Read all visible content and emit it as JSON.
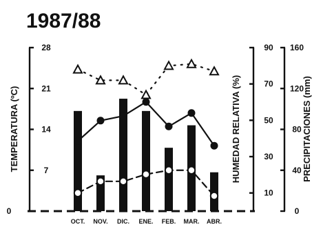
{
  "chart_data": {
    "type": "bar",
    "title": "1987/88",
    "categories": [
      "OCT.",
      "NOV.",
      "DIC.",
      "ENE.",
      "FEB.",
      "MAR.",
      "ABR."
    ],
    "axes": {
      "left": {
        "label": "TEMPERATURA (ºC)",
        "range": [
          0,
          28
        ],
        "ticks": [
          "0",
          "7",
          "14",
          "21",
          "28"
        ]
      },
      "right1": {
        "label": "HUMEDAD RELATIVA (%)",
        "range": [
          0,
          90
        ],
        "ticks": [
          "10",
          "30",
          "50",
          "70",
          "90"
        ]
      },
      "right2": {
        "label": "PRECIPITACIONES (mm)",
        "range": [
          0,
          160
        ],
        "ticks": [
          "0",
          "40",
          "80",
          "120",
          "160"
        ]
      }
    },
    "series": [
      {
        "kind": "bar",
        "axis": "right2",
        "values": [
          98,
          35,
          110,
          98,
          62,
          84,
          38
        ]
      },
      {
        "kind": "line-solid-filled-circle",
        "axis": "left",
        "values": [
          12.0,
          15.5,
          16.3,
          18.7,
          14.5,
          16.8,
          11.2
        ]
      },
      {
        "kind": "line-dashed-open-circle",
        "axis": "left",
        "values": [
          3.1,
          5.1,
          5.1,
          6.3,
          7.0,
          7.0,
          2.6
        ]
      },
      {
        "kind": "line-dotted-triangle",
        "axis": "right1",
        "values": [
          78,
          72,
          72,
          64,
          80,
          81,
          77
        ]
      }
    ]
  }
}
